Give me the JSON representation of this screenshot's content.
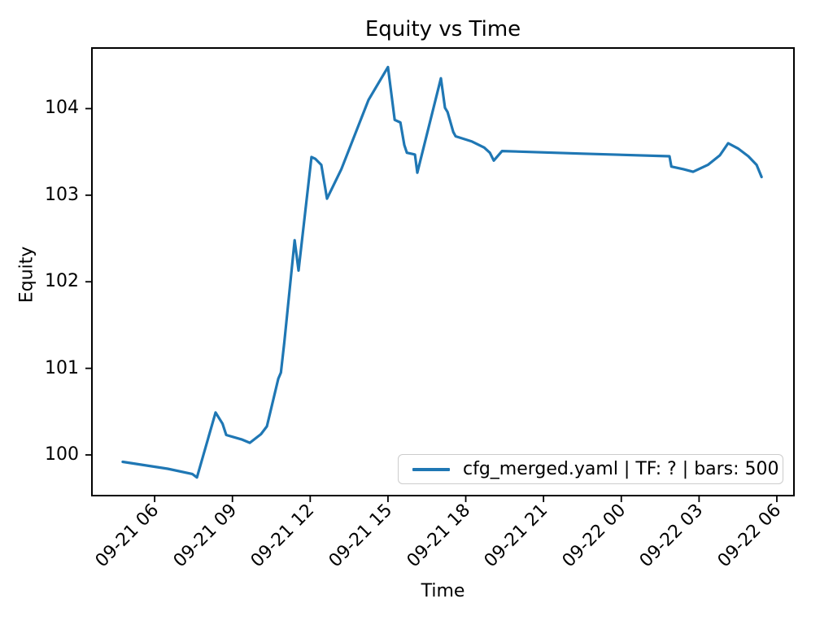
{
  "figure": {
    "background": "#ffffff",
    "text_color": "#000000",
    "spine_color": "#000000",
    "legend_border_color": "#cccccc"
  },
  "chart_data": {
    "type": "line",
    "title": "Equity vs Time",
    "xlabel": "Time",
    "ylabel": "Equity",
    "grid": false,
    "legend_position": "lower right",
    "x_unit": "hours since 09-21 00:00",
    "xlim_hours": [
      3.58,
      30.66
    ],
    "ylim": [
      99.53,
      104.7
    ],
    "y_ticks": [
      100,
      101,
      102,
      103,
      104
    ],
    "x_ticks": [
      {
        "hour": 6,
        "label": "09-21 06"
      },
      {
        "hour": 9,
        "label": "09-21 09"
      },
      {
        "hour": 12,
        "label": "09-21 12"
      },
      {
        "hour": 15,
        "label": "09-21 15"
      },
      {
        "hour": 18,
        "label": "09-21 18"
      },
      {
        "hour": 21,
        "label": "09-21 21"
      },
      {
        "hour": 24,
        "label": "09-22 00"
      },
      {
        "hour": 27,
        "label": "09-22 03"
      },
      {
        "hour": 30,
        "label": "09-22 06"
      }
    ],
    "series": [
      {
        "name": "cfg_merged.yaml | TF: ? | bars: 500",
        "color": "#1f77b4",
        "points": [
          [
            4.77,
            99.92
          ],
          [
            6.5,
            99.84
          ],
          [
            7.45,
            99.78
          ],
          [
            7.63,
            99.74
          ],
          [
            8.35,
            100.49
          ],
          [
            8.62,
            100.36
          ],
          [
            8.76,
            100.23
          ],
          [
            9.35,
            100.18
          ],
          [
            9.67,
            100.14
          ],
          [
            10.1,
            100.24
          ],
          [
            10.33,
            100.33
          ],
          [
            10.77,
            100.88
          ],
          [
            10.87,
            100.95
          ],
          [
            11.0,
            101.3
          ],
          [
            11.4,
            102.48
          ],
          [
            11.55,
            102.13
          ],
          [
            12.05,
            103.44
          ],
          [
            12.2,
            103.42
          ],
          [
            12.43,
            103.35
          ],
          [
            12.65,
            102.96
          ],
          [
            13.2,
            103.3
          ],
          [
            14.25,
            104.1
          ],
          [
            15.0,
            104.48
          ],
          [
            15.26,
            103.87
          ],
          [
            15.48,
            103.84
          ],
          [
            15.63,
            103.58
          ],
          [
            15.73,
            103.49
          ],
          [
            16.04,
            103.47
          ],
          [
            16.13,
            103.26
          ],
          [
            17.04,
            104.35
          ],
          [
            17.2,
            104.01
          ],
          [
            17.3,
            103.96
          ],
          [
            17.52,
            103.73
          ],
          [
            17.61,
            103.68
          ],
          [
            18.24,
            103.62
          ],
          [
            18.71,
            103.55
          ],
          [
            18.93,
            103.49
          ],
          [
            19.08,
            103.4
          ],
          [
            19.4,
            103.51
          ],
          [
            22.5,
            103.48
          ],
          [
            25.86,
            103.45
          ],
          [
            25.93,
            103.33
          ],
          [
            26.4,
            103.3
          ],
          [
            26.77,
            103.27
          ],
          [
            27.34,
            103.35
          ],
          [
            27.8,
            103.46
          ],
          [
            28.12,
            103.6
          ],
          [
            28.5,
            103.54
          ],
          [
            28.9,
            103.45
          ],
          [
            29.22,
            103.35
          ],
          [
            29.41,
            103.21
          ]
        ]
      }
    ],
    "legend": [
      "cfg_merged.yaml | TF: ? | bars: 500"
    ]
  }
}
